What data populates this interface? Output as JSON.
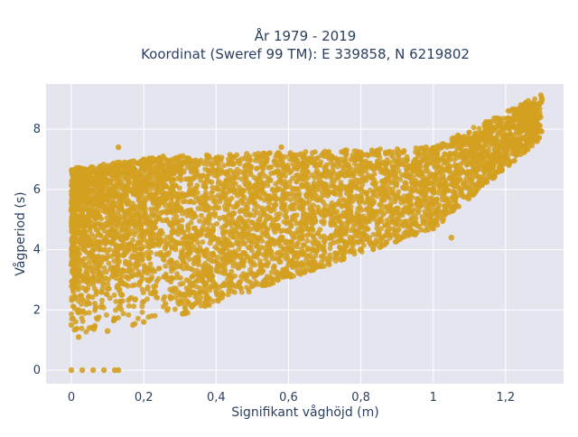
{
  "chart_data": {
    "type": "scatter",
    "title": "År 1979 - 2019",
    "subtitle": "Koordinat (Sweref 99 TM): E 339858, N 6219802",
    "xlabel": "Signifikant våghöjd (m)",
    "ylabel": "Vågperiod (s)",
    "xlim": [
      -0.07,
      1.36
    ],
    "ylim": [
      -0.45,
      9.5
    ],
    "xticks": [
      0,
      0.2,
      0.4,
      0.6,
      0.8,
      1,
      1.2
    ],
    "xtick_labels": [
      "0",
      "0,2",
      "0,4",
      "0,6",
      "0,8",
      "1",
      "1,2"
    ],
    "yticks": [
      0,
      2,
      4,
      6,
      8
    ],
    "ytick_labels": [
      "0",
      "2",
      "4",
      "6",
      "8"
    ],
    "grid": true,
    "legend": "none",
    "marker_color": "#d4a020",
    "background": "#e5e5f0",
    "series": [
      {
        "points": [
          [
            0.0,
            0.0
          ],
          [
            0.03,
            0.0
          ],
          [
            0.06,
            0.0
          ],
          [
            0.09,
            0.0
          ],
          [
            0.12,
            0.0
          ],
          [
            0.13,
            0.0
          ],
          [
            0.0,
            1.5
          ],
          [
            0.0,
            3.5
          ],
          [
            0.0,
            5.3
          ],
          [
            0.01,
            4.6
          ],
          [
            0.02,
            2.0
          ],
          [
            0.03,
            6.2
          ],
          [
            0.02,
            1.1
          ],
          [
            0.05,
            1.4
          ],
          [
            0.07,
            2.6
          ],
          [
            0.08,
            4.2
          ],
          [
            0.06,
            5.5
          ],
          [
            0.1,
            1.3
          ],
          [
            0.12,
            1.7
          ],
          [
            0.14,
            2.5
          ],
          [
            0.15,
            3.6
          ],
          [
            0.16,
            5.3
          ],
          [
            0.15,
            6.6
          ],
          [
            0.17,
            1.5
          ],
          [
            0.2,
            1.6
          ],
          [
            0.21,
            3.0
          ],
          [
            0.22,
            4.6
          ],
          [
            0.24,
            6.0
          ],
          [
            0.25,
            6.8
          ],
          [
            0.26,
            2.2
          ],
          [
            0.3,
            2.5
          ],
          [
            0.32,
            4.2
          ],
          [
            0.33,
            5.6
          ],
          [
            0.35,
            6.9
          ],
          [
            0.37,
            3.3
          ],
          [
            0.4,
            2.8
          ],
          [
            0.42,
            4.6
          ],
          [
            0.45,
            6.5
          ],
          [
            0.47,
            7.0
          ],
          [
            0.5,
            3.2
          ],
          [
            0.52,
            5.0
          ],
          [
            0.55,
            6.3
          ],
          [
            0.58,
            7.1
          ],
          [
            0.6,
            3.5
          ],
          [
            0.63,
            5.4
          ],
          [
            0.66,
            6.9
          ],
          [
            0.7,
            3.7
          ],
          [
            0.72,
            5.2
          ],
          [
            0.75,
            6.6
          ],
          [
            0.78,
            7.0
          ],
          [
            0.8,
            4.0
          ],
          [
            0.83,
            5.5
          ],
          [
            0.86,
            6.9
          ],
          [
            0.9,
            4.3
          ],
          [
            0.92,
            5.6
          ],
          [
            0.95,
            6.2
          ],
          [
            0.98,
            7.4
          ],
          [
            1.0,
            4.7
          ],
          [
            1.03,
            5.9
          ],
          [
            1.06,
            6.8
          ],
          [
            1.1,
            6.0
          ],
          [
            1.12,
            7.2
          ],
          [
            1.15,
            7.6
          ],
          [
            1.18,
            7.9
          ],
          [
            1.2,
            7.5
          ],
          [
            1.22,
            8.1
          ],
          [
            1.25,
            8.4
          ],
          [
            1.28,
            8.8
          ],
          [
            1.3,
            9.0
          ],
          [
            0.13,
            7.4
          ],
          [
            0.58,
            7.4
          ],
          [
            0.76,
            7.3
          ],
          [
            0.95,
            4.5
          ],
          [
            1.05,
            4.4
          ],
          [
            0.38,
            7.1
          ],
          [
            0.1,
            6.6
          ],
          [
            0.28,
            6.9
          ],
          [
            0.44,
            3.7
          ]
        ]
      }
    ]
  }
}
